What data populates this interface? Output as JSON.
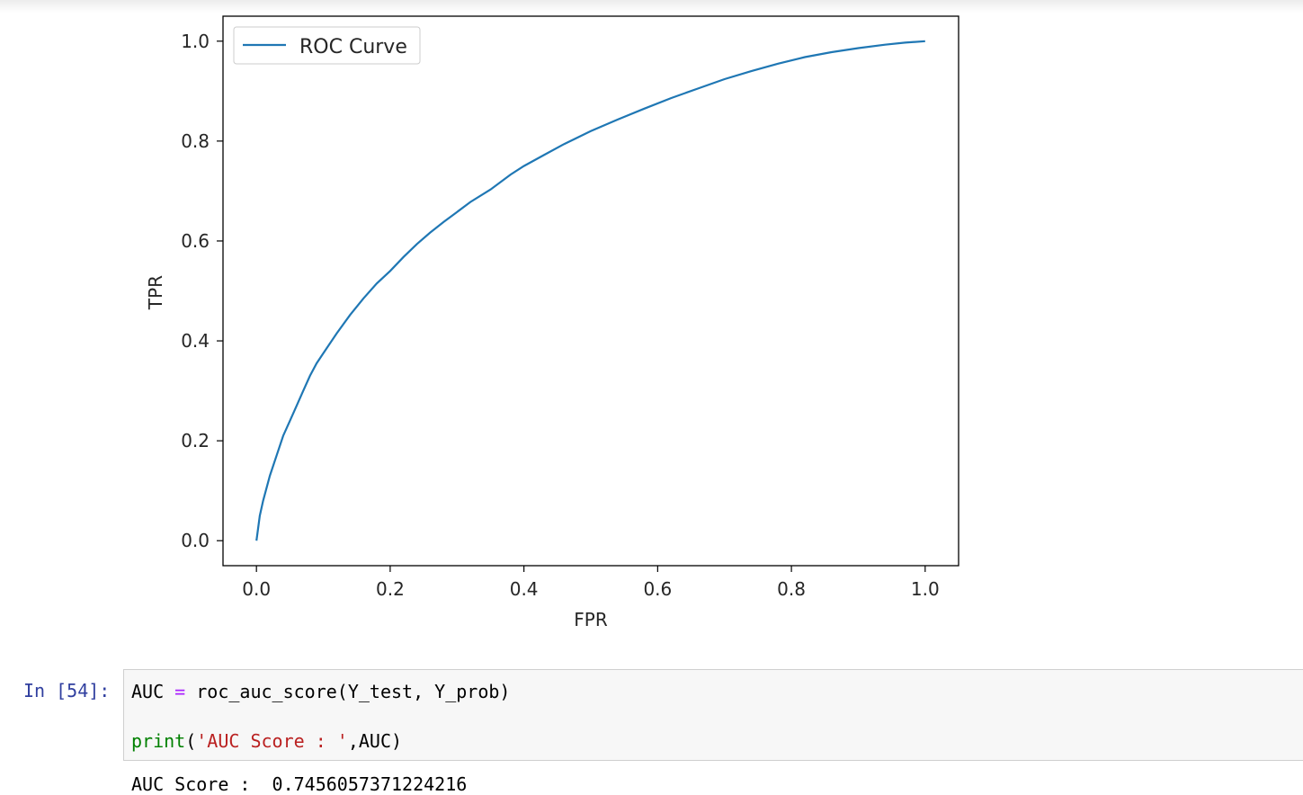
{
  "chart_data": {
    "type": "line",
    "xlabel": "FPR",
    "ylabel": "TPR",
    "xlim": [
      -0.05,
      1.05
    ],
    "ylim": [
      -0.05,
      1.05
    ],
    "x_ticks": [
      "0.0",
      "0.2",
      "0.4",
      "0.6",
      "0.8",
      "1.0"
    ],
    "y_ticks": [
      "0.0",
      "0.2",
      "0.4",
      "0.6",
      "0.8",
      "1.0"
    ],
    "grid": false,
    "legend": "upper-left",
    "series": [
      {
        "name": "ROC Curve",
        "color": "#1f77b4",
        "x": [
          0.0,
          0.005,
          0.01,
          0.02,
          0.03,
          0.04,
          0.05,
          0.06,
          0.07,
          0.08,
          0.09,
          0.1,
          0.12,
          0.14,
          0.16,
          0.18,
          0.2,
          0.22,
          0.24,
          0.26,
          0.28,
          0.3,
          0.32,
          0.35,
          0.38,
          0.4,
          0.43,
          0.46,
          0.5,
          0.54,
          0.58,
          0.62,
          0.66,
          0.7,
          0.74,
          0.78,
          0.82,
          0.86,
          0.9,
          0.94,
          0.97,
          1.0
        ],
        "y": [
          0.0,
          0.05,
          0.08,
          0.13,
          0.17,
          0.21,
          0.24,
          0.27,
          0.3,
          0.33,
          0.355,
          0.375,
          0.415,
          0.452,
          0.485,
          0.515,
          0.54,
          0.568,
          0.594,
          0.617,
          0.638,
          0.658,
          0.678,
          0.703,
          0.733,
          0.75,
          0.772,
          0.794,
          0.82,
          0.843,
          0.865,
          0.886,
          0.905,
          0.924,
          0.94,
          0.955,
          0.968,
          0.978,
          0.986,
          0.993,
          0.997,
          1.0
        ]
      }
    ]
  },
  "cell": {
    "prompt": "In [54]:",
    "line1": {
      "var": "AUC ",
      "op": "=",
      "rest": " roc_auc_score(Y_test, Y_prob)"
    },
    "line2": {
      "fn": "print",
      "open": "(",
      "str": "'AUC Score : '",
      "rest": ",AUC)"
    }
  },
  "output": {
    "text": "AUC Score :  0.7456057371224216"
  }
}
